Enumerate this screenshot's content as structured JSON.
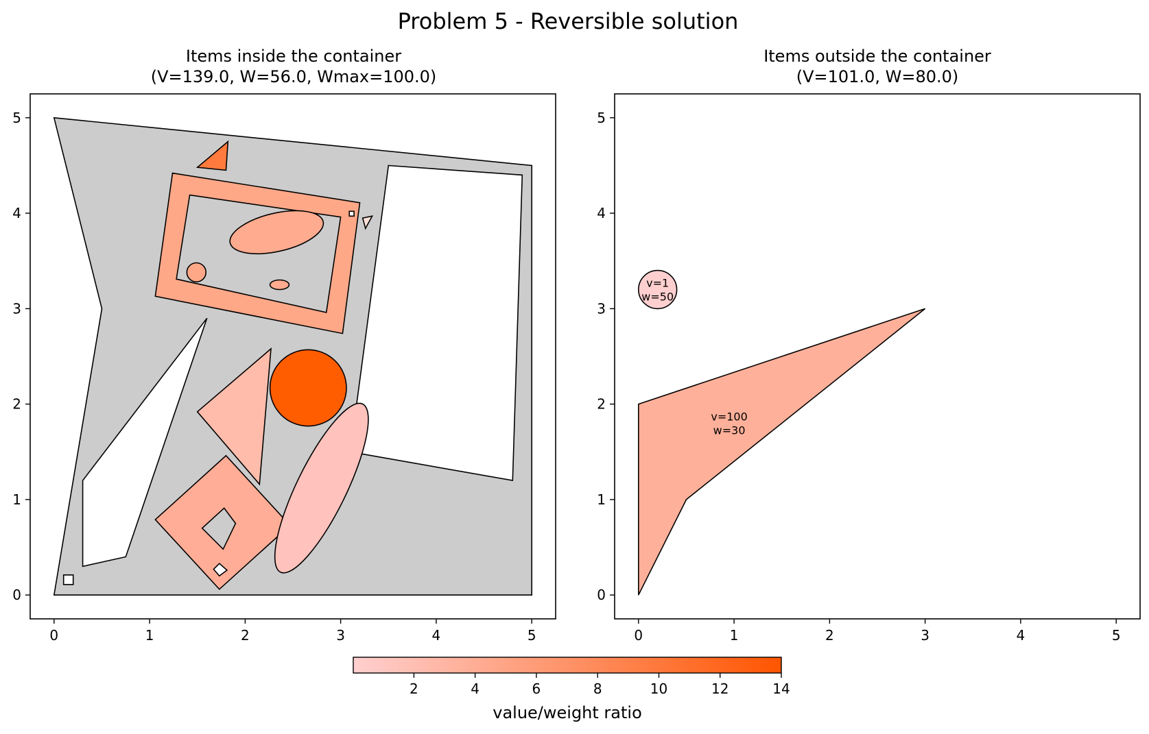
{
  "title": "Problem 5 - Reversible solution",
  "chart_data": [
    {
      "type": "polygon-plot",
      "title_line1": "Items inside the container",
      "title_line2": "(V=139.0, W=56.0, Wmax=100.0)",
      "xlim": [
        -0.25,
        5.25
      ],
      "ylim": [
        -0.25,
        5.25
      ],
      "xticks": [
        "0",
        "1",
        "2",
        "3",
        "4",
        "5"
      ],
      "yticks": [
        "0",
        "1",
        "2",
        "3",
        "4",
        "5"
      ],
      "container": {
        "color": "#cccccc",
        "outer": [
          [
            0,
            5
          ],
          [
            5,
            4.5
          ],
          [
            5,
            0
          ],
          [
            0,
            0
          ],
          [
            0.5,
            3
          ]
        ],
        "holes": [
          [
            [
              3.5,
              4.5
            ],
            [
              4.9,
              4.4
            ],
            [
              4.8,
              1.2
            ],
            [
              3.1,
              1.5
            ]
          ],
          [
            [
              1.6,
              2.9
            ],
            [
              0.75,
              0.4
            ],
            [
              0.3,
              0.3
            ],
            [
              0.3,
              1.2
            ]
          ]
        ]
      },
      "items": [
        {
          "shape": "polygon",
          "color": "#ff7b3d",
          "points": [
            [
              1.5,
              4.48
            ],
            [
              1.82,
              4.75
            ],
            [
              1.8,
              4.45
            ]
          ]
        },
        {
          "shape": "ring",
          "color": "#ffa888",
          "outer": [
            [
              1.24,
              4.42
            ],
            [
              3.2,
              4.11
            ],
            [
              3.02,
              2.74
            ],
            [
              1.06,
              3.13
            ]
          ],
          "inner": [
            [
              1.42,
              4.19
            ],
            [
              3.0,
              3.96
            ],
            [
              2.85,
              2.96
            ],
            [
              1.28,
              3.31
            ]
          ]
        },
        {
          "shape": "ellipse",
          "color": "#ffab8f",
          "center": [
            2.33,
            3.8
          ],
          "r": [
            0.5,
            0.2
          ],
          "angle": -13
        },
        {
          "shape": "ellipse",
          "color": "#ffa888",
          "center": [
            1.49,
            3.38
          ],
          "r": [
            0.1,
            0.1
          ],
          "angle": 0
        },
        {
          "shape": "ellipse",
          "color": "#ffab8f",
          "center": [
            2.36,
            3.25
          ],
          "r": [
            0.1,
            0.05
          ],
          "angle": 0
        },
        {
          "shape": "polygon",
          "color": "#ffffff",
          "points": [
            [
              3.09,
              4.02
            ],
            [
              3.14,
              4.02
            ],
            [
              3.14,
              3.97
            ],
            [
              3.09,
              3.97
            ]
          ]
        },
        {
          "shape": "polygon",
          "color": "#ffe0d6",
          "points": [
            [
              3.23,
              3.95
            ],
            [
              3.33,
              3.97
            ],
            [
              3.26,
              3.84
            ]
          ]
        },
        {
          "shape": "polygon",
          "color": "#ffbcab",
          "points": [
            [
              2.27,
              2.58
            ],
            [
              1.5,
              1.92
            ],
            [
              2.15,
              1.16
            ]
          ]
        },
        {
          "shape": "ellipse",
          "color": "#ff5d00",
          "center": [
            2.66,
            2.17
          ],
          "r": [
            0.4,
            0.4
          ],
          "angle": 0
        },
        {
          "shape": "ring",
          "color": "#ffad96",
          "outer": [
            [
              1.8,
              1.46
            ],
            [
              2.47,
              0.73
            ],
            [
              1.73,
              0.06
            ],
            [
              1.06,
              0.79
            ]
          ],
          "inner": [
            [
              1.78,
              0.91
            ],
            [
              1.9,
              0.75
            ],
            [
              1.77,
              0.48
            ],
            [
              1.55,
              0.7
            ]
          ]
        },
        {
          "shape": "polygon",
          "color": "#ffffff",
          "points": [
            [
              1.73,
              0.33
            ],
            [
              1.81,
              0.26
            ],
            [
              1.73,
              0.2
            ],
            [
              1.67,
              0.27
            ]
          ]
        },
        {
          "shape": "ellipse",
          "color": "#ffc2bd",
          "center": [
            2.8,
            1.12
          ],
          "r": [
            0.98,
            0.26
          ],
          "angle": -64
        },
        {
          "shape": "polygon",
          "color": "#ffffff",
          "points": [
            [
              0.1,
              0.21
            ],
            [
              0.2,
              0.21
            ],
            [
              0.2,
              0.11
            ],
            [
              0.1,
              0.11
            ]
          ]
        }
      ]
    },
    {
      "type": "polygon-plot",
      "title_line1": "Items outside the container",
      "title_line2": "(V=101.0, W=80.0)",
      "xlim": [
        -0.25,
        5.25
      ],
      "ylim": [
        -0.25,
        5.25
      ],
      "xticks": [
        "0",
        "1",
        "2",
        "3",
        "4",
        "5"
      ],
      "yticks": [
        "0",
        "1",
        "2",
        "3",
        "4",
        "5"
      ],
      "items": [
        {
          "shape": "ellipse",
          "color": "#ffcfcf",
          "center": [
            0.2,
            3.2
          ],
          "r": [
            0.2,
            0.2
          ],
          "angle": 0,
          "label": [
            "v=1",
            "w=50"
          ]
        },
        {
          "shape": "polygon",
          "color": "#ffb09a",
          "points": [
            [
              0,
              2
            ],
            [
              3,
              3
            ],
            [
              0.5,
              1
            ],
            [
              0,
              0
            ]
          ],
          "label": [
            "v=100",
            "w=30"
          ],
          "label_at": [
            0.95,
            1.8
          ]
        }
      ]
    }
  ],
  "colorbar": {
    "label": "value/weight ratio",
    "min": 0.02,
    "max": 14,
    "ticks": [
      "2",
      "4",
      "6",
      "8",
      "10",
      "12",
      "14"
    ],
    "color_low": "#ffd0d0",
    "color_high": "#ff5500"
  }
}
